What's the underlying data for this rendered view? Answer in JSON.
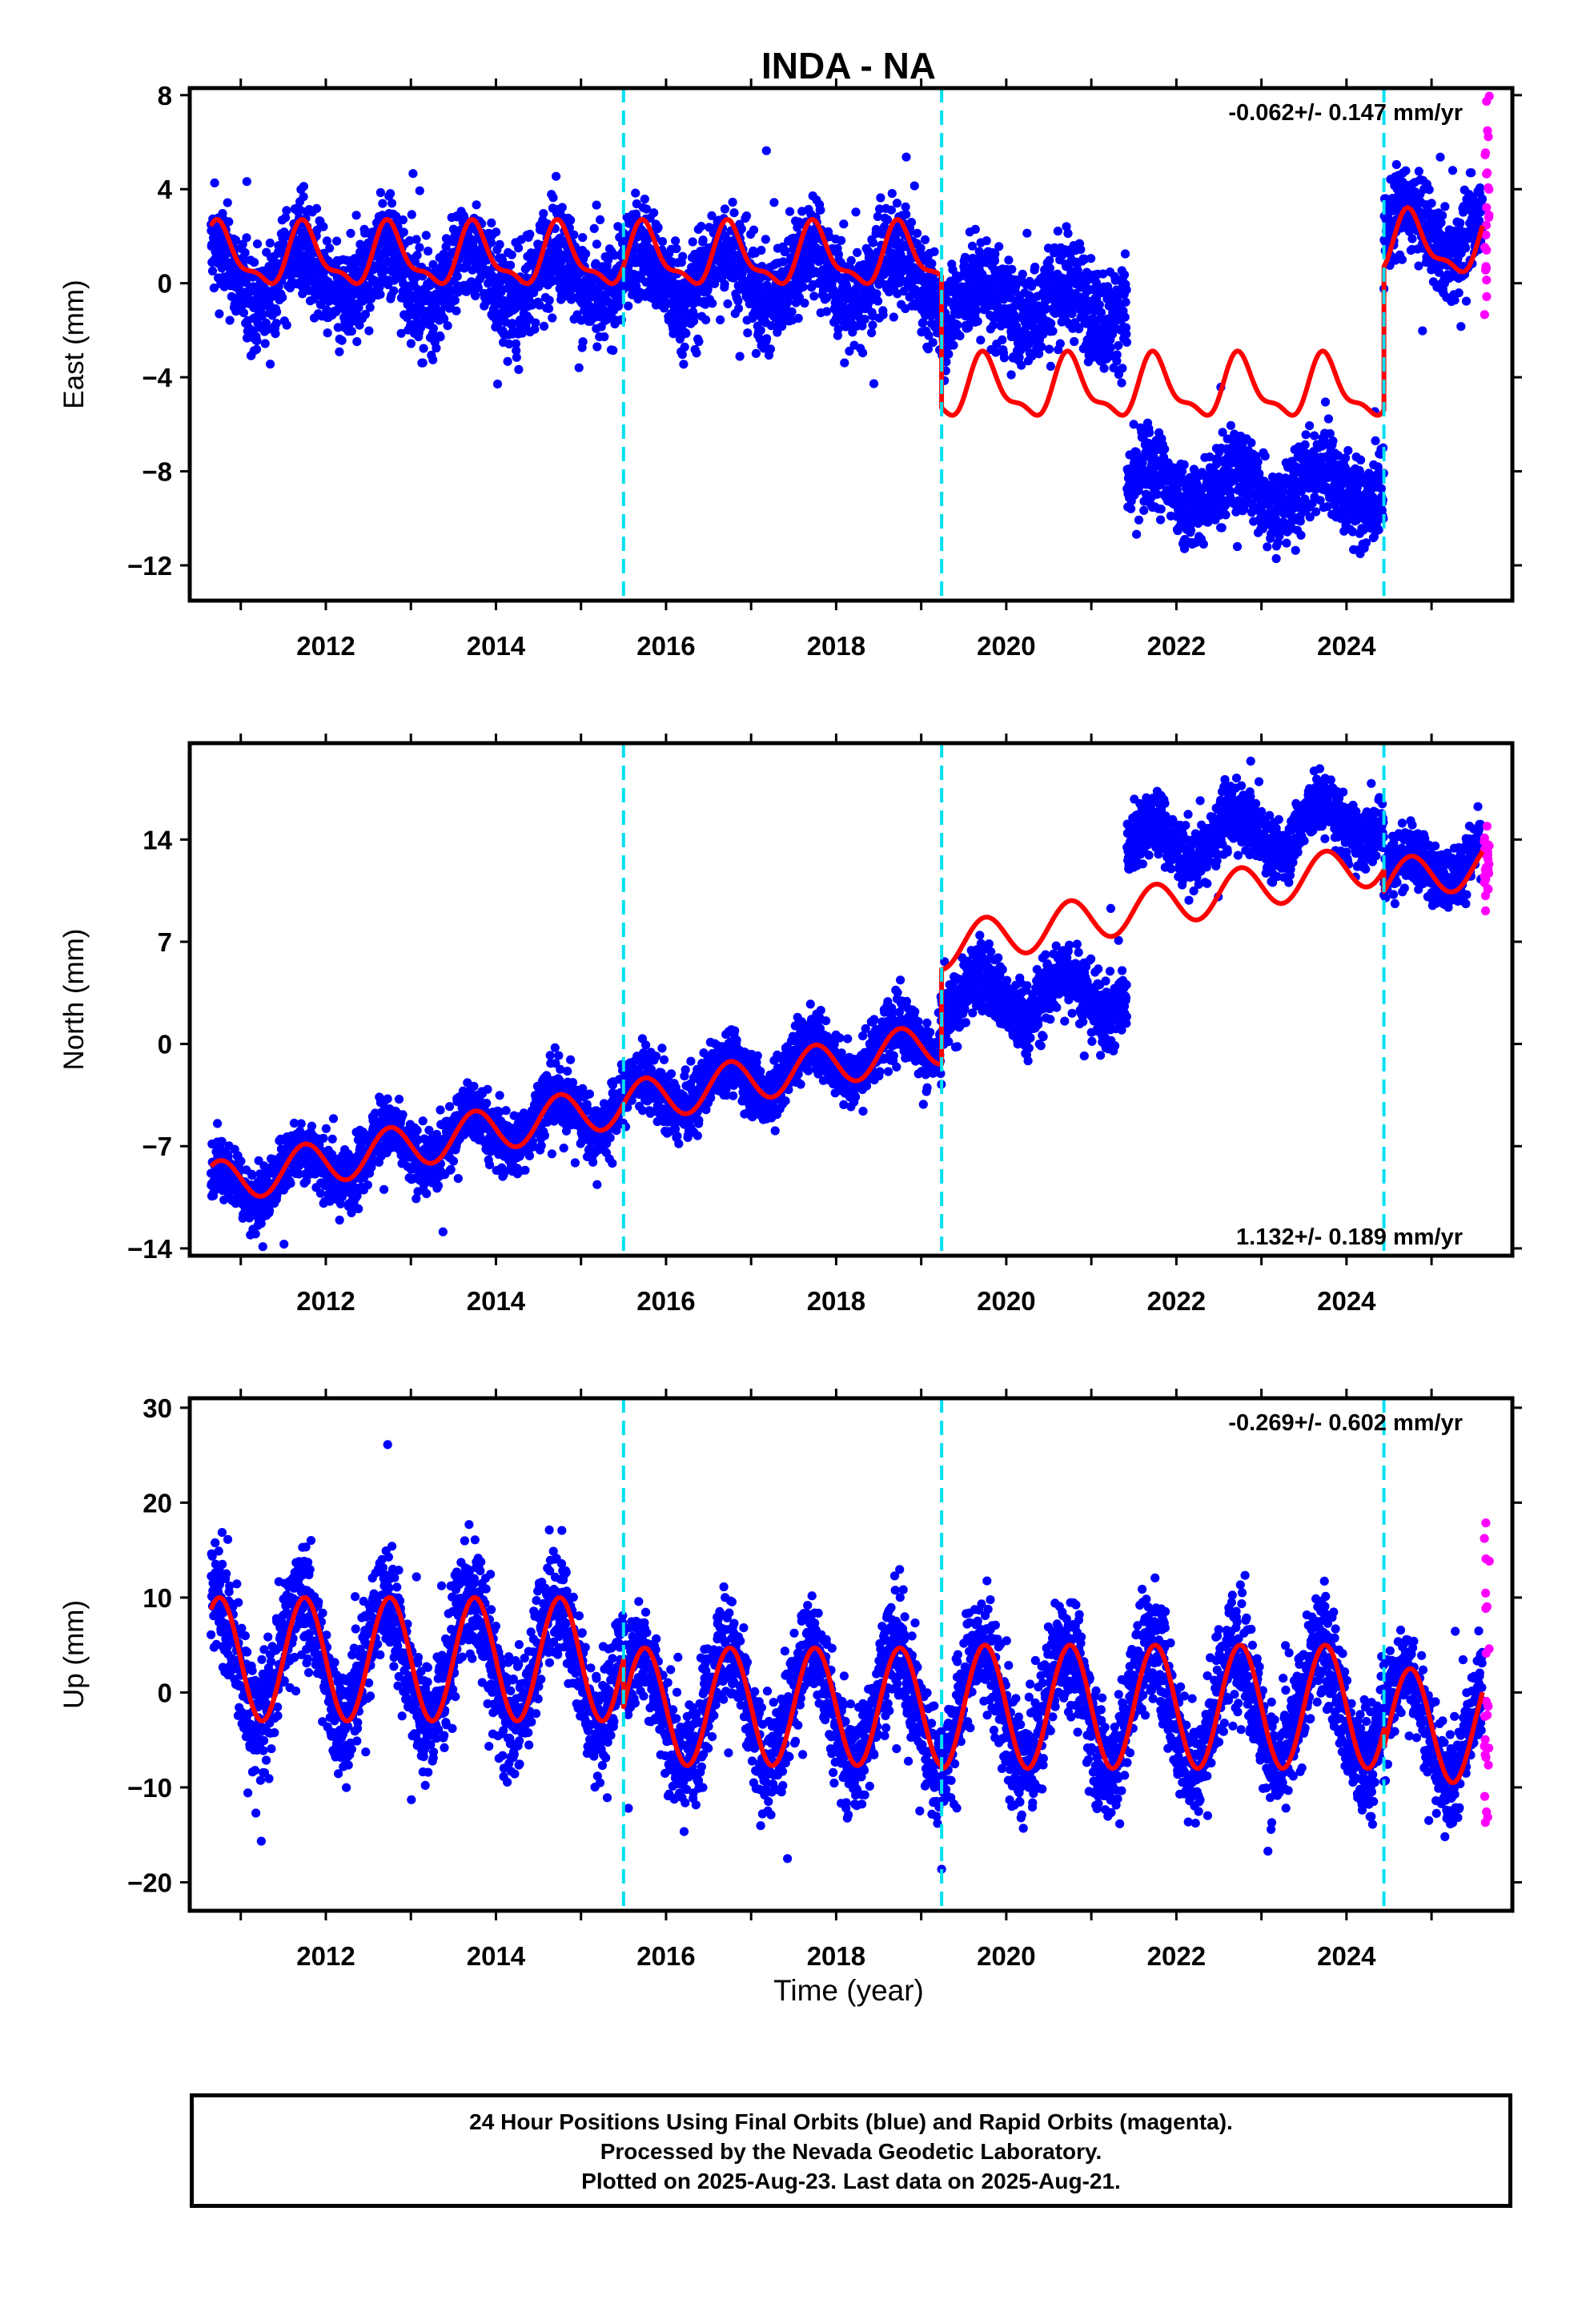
{
  "title": "INDA - NA",
  "xlabel": "Time (year)",
  "caption": {
    "line1": "24 Hour Positions Using Final Orbits (blue) and Rapid Orbits (magenta).",
    "line2": "Processed by the Nevada Geodetic Laboratory.",
    "line3": "Plotted on 2025-Aug-23. Last data on 2025-Aug-21."
  },
  "colors": {
    "final_orbits": "#0000ff",
    "rapid_orbits": "#ff00ff",
    "model_fit": "#ff0000",
    "breaks": "#00e0f0"
  },
  "chart_data": [
    {
      "type": "scatter",
      "ylabel": "East (mm)",
      "rate_label": "-0.062+/- 0.147 mm/yr",
      "rate_position": "top-right",
      "xlim": [
        2010.4,
        2025.95
      ],
      "ylim": [
        -13.5,
        8.3
      ],
      "yticks": [
        8,
        4,
        0,
        -4,
        -8,
        -12
      ],
      "ytick_labels": [
        "8",
        "4",
        "0",
        "−4",
        "−8",
        "−12"
      ],
      "xticks": [
        2012,
        2014,
        2016,
        2018,
        2020,
        2022,
        2024
      ],
      "xtick_labels": [
        "2012",
        "2014",
        "2016",
        "2018",
        "2020",
        "2022",
        "2024"
      ],
      "breaks": [
        2015.5,
        2019.24,
        2024.44
      ],
      "trend_segments": [
        {
          "x": [
            2010.65,
            2019.24
          ],
          "offset": 1.1,
          "season_amp": 1.2,
          "season_phase": 1.2,
          "semi_amp": 0.45
        },
        {
          "x": [
            2019.24,
            2024.44
          ],
          "offset": -4.5,
          "season_amp": 1.2,
          "season_phase": 1.2,
          "semi_amp": 0.45
        },
        {
          "x": [
            2024.44,
            2025.6
          ],
          "offset": 1.6,
          "season_amp": 1.2,
          "season_phase": 1.2,
          "semi_amp": 0.45
        }
      ],
      "final_orbits_segments": [
        {
          "x": [
            2010.65,
            2019.24
          ],
          "center": 0.3,
          "scatter": 1.5,
          "season_amp": 1.2
        },
        {
          "x": [
            2019.24,
            2021.42
          ],
          "center": -0.8,
          "scatter": 1.5,
          "season_amp": 0.8
        },
        {
          "x": [
            2021.42,
            2024.44
          ],
          "center": -8.7,
          "scatter": 1.3,
          "season_amp": 0.8
        },
        {
          "x": [
            2024.44,
            2025.6
          ],
          "center": 2.2,
          "scatter": 1.3,
          "season_amp": 1.0
        }
      ],
      "rapid_orbits": {
        "x": [
          2025.62,
          2025.68
        ],
        "y_range": [
          -1.5,
          8.2
        ]
      }
    },
    {
      "type": "scatter",
      "ylabel": "North (mm)",
      "rate_label": "1.132+/- 0.189 mm/yr",
      "rate_position": "bottom-right",
      "xlim": [
        2010.4,
        2025.95
      ],
      "ylim": [
        -14.5,
        20.6
      ],
      "yticks": [
        14,
        7,
        0,
        -7,
        -14
      ],
      "ytick_labels": [
        "14",
        "7",
        "0",
        "−7",
        "−14"
      ],
      "xticks": [
        2012,
        2014,
        2016,
        2018,
        2020,
        2022,
        2024
      ],
      "xtick_labels": [
        "2012",
        "2014",
        "2016",
        "2018",
        "2020",
        "2022",
        "2024"
      ],
      "breaks": [
        2015.5,
        2019.24,
        2024.44
      ],
      "trend_segments": [
        {
          "x": [
            2010.65,
            2019.24
          ],
          "start": -9.6,
          "slope": 1.13,
          "season_amp": 1.5
        },
        {
          "x": [
            2019.24,
            2024.44
          ],
          "start": 6.6,
          "slope": 1.13,
          "season_amp": 1.5
        },
        {
          "x": [
            2024.44,
            2025.6
          ],
          "start": 11.0,
          "slope": 1.13,
          "season_amp": 1.5
        }
      ],
      "final_orbits_segments": [
        {
          "x": [
            2010.65,
            2019.24
          ],
          "start": -9.8,
          "end": 0.5,
          "scatter": 1.5,
          "season_amp": 1.5
        },
        {
          "x": [
            2019.24,
            2021.42
          ],
          "start": 3.0,
          "end": 3.5,
          "scatter": 1.7,
          "season_amp": 1.6
        },
        {
          "x": [
            2021.42,
            2024.44
          ],
          "start": 13.5,
          "end": 15.5,
          "scatter": 1.5,
          "season_amp": 1.5
        },
        {
          "x": [
            2024.44,
            2025.6
          ],
          "start": 11.5,
          "end": 13.0,
          "scatter": 1.4,
          "season_amp": 1.2
        }
      ],
      "rapid_orbits": {
        "x": [
          2025.62,
          2025.68
        ],
        "y_range": [
          8.5,
          15.0
        ]
      }
    },
    {
      "type": "scatter",
      "ylabel": "Up (mm)",
      "rate_label": "-0.269+/- 0.602 mm/yr",
      "rate_position": "top-right",
      "xlim": [
        2010.4,
        2025.95
      ],
      "ylim": [
        -23,
        31
      ],
      "yticks": [
        30,
        20,
        10,
        0,
        -10,
        -20
      ],
      "ytick_labels": [
        "30",
        "20",
        "10",
        "0",
        "−10",
        "−20"
      ],
      "xticks": [
        2012,
        2014,
        2016,
        2018,
        2020,
        2022,
        2024
      ],
      "xtick_labels": [
        "2012",
        "2014",
        "2016",
        "2018",
        "2020",
        "2022",
        "2024"
      ],
      "breaks": [
        2015.5,
        2019.24,
        2024.44
      ],
      "trend_segments": [
        {
          "x": [
            2010.65,
            2015.5
          ],
          "offset": 3.5,
          "season_amp": 6.5
        },
        {
          "x": [
            2015.5,
            2019.24
          ],
          "offset": -1.5,
          "season_amp": 6.2
        },
        {
          "x": [
            2019.24,
            2024.44
          ],
          "offset": -1.5,
          "season_amp": 6.5
        },
        {
          "x": [
            2024.44,
            2025.6
          ],
          "offset": -3.5,
          "season_amp": 6.0
        }
      ],
      "final_orbits_segments": [
        {
          "x": [
            2010.65,
            2015.5
          ],
          "center": 3.5,
          "scatter": 4.2,
          "season_amp": 6.5
        },
        {
          "x": [
            2015.5,
            2019.24
          ],
          "center": -1.5,
          "scatter": 4.0,
          "season_amp": 6.2
        },
        {
          "x": [
            2019.24,
            2024.44
          ],
          "center": -1.5,
          "scatter": 4.3,
          "season_amp": 6.5
        },
        {
          "x": [
            2024.44,
            2025.6
          ],
          "center": -3.5,
          "scatter": 3.5,
          "season_amp": 6.0
        }
      ],
      "rapid_orbits": {
        "x": [
          2025.62,
          2025.68
        ],
        "y_range": [
          -14,
          18
        ]
      }
    }
  ]
}
